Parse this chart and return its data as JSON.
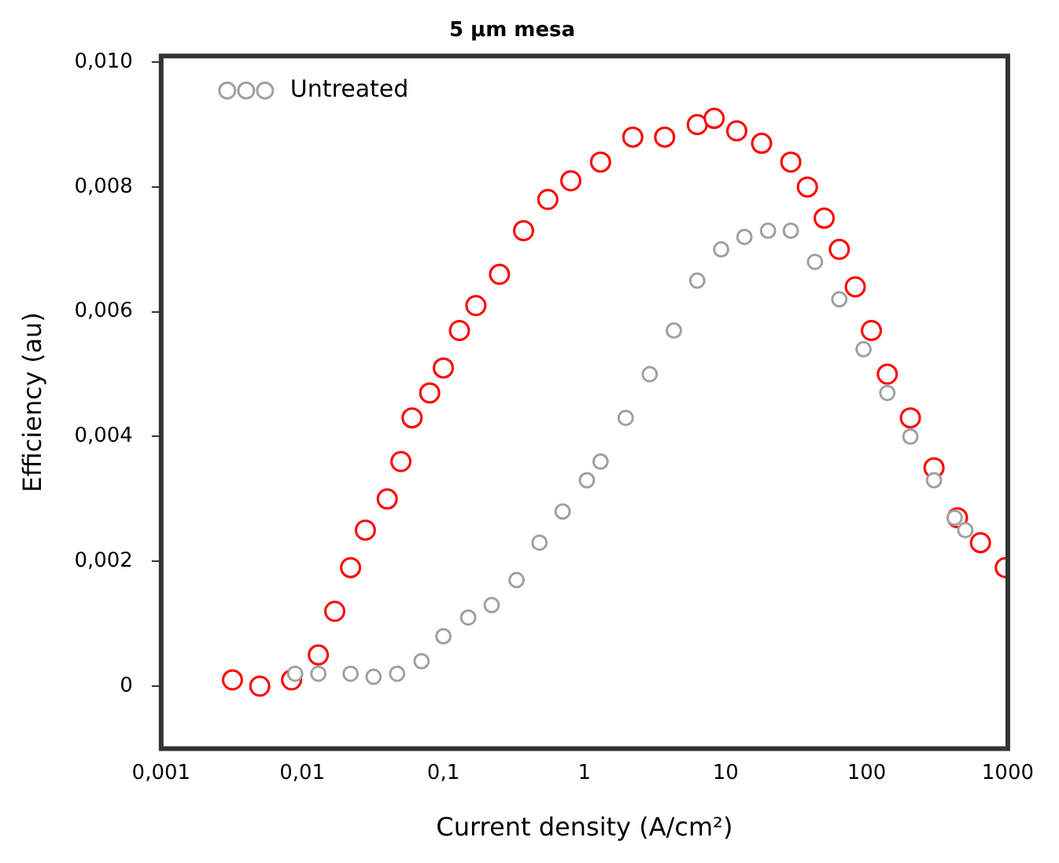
{
  "chart_data": {
    "type": "scatter",
    "title": "5 µm mesa",
    "xlabel": "Current density (A/cm²)",
    "ylabel": "Efficiency (au)",
    "log": "x",
    "xlim": [
      0.001,
      1000
    ],
    "xticks": [
      {
        "value": 0.001,
        "label": "0,001"
      },
      {
        "value": 0.01,
        "label": "0,01"
      },
      {
        "value": 0.1,
        "label": "0,1"
      },
      1,
      10,
      100,
      1000
    ],
    "ylim": [
      -0.001,
      0.0101
    ],
    "yticks": [
      0,
      {
        "value": 0.002,
        "label": "0,002"
      },
      {
        "value": 0.004,
        "label": "0,004"
      },
      {
        "value": 0.006,
        "label": "0,006"
      },
      {
        "value": 0.008,
        "label": "0,008"
      },
      {
        "value": 0.01,
        "label": "0,010"
      }
    ],
    "grid": false,
    "legend": "top left",
    "marker": "circle",
    "series": [
      {
        "name": "Untreated",
        "color": "#a0a0a0",
        "x": [
          0.0089,
          0.013,
          0.022,
          0.032,
          0.047,
          0.07,
          0.1,
          0.15,
          0.22,
          0.33,
          0.48,
          0.7,
          1.04,
          1.3,
          1.96,
          2.9,
          4.3,
          6.3,
          9.3,
          13.6,
          20,
          29,
          43,
          64,
          95,
          140,
          204,
          300,
          420,
          500
        ],
        "values": [
          0.0002,
          0.0002,
          0.0002,
          0.00015,
          0.0002,
          0.0004,
          0.0008,
          0.0011,
          0.0013,
          0.0017,
          0.0023,
          0.0028,
          0.0033,
          0.0036,
          0.0043,
          0.005,
          0.0057,
          0.0065,
          0.007,
          0.0072,
          0.0073,
          0.0073,
          0.0068,
          0.0062,
          0.0054,
          0.0047,
          0.004,
          0.0033,
          0.0027,
          0.0025
        ]
      },
      {
        "color": "#ff0000",
        "x": [
          0.0032,
          0.005,
          0.0084,
          0.013,
          0.017,
          0.022,
          0.028,
          0.04,
          0.05,
          0.06,
          0.08,
          0.1,
          0.13,
          0.17,
          0.25,
          0.37,
          0.55,
          0.8,
          1.3,
          2.2,
          3.7,
          6.3,
          8.3,
          12,
          18,
          29,
          38,
          50,
          64,
          83,
          108,
          140,
          204,
          300,
          440,
          640,
          960
        ],
        "values": [
          0.0001,
          0.0,
          0.0001,
          0.0005,
          0.0012,
          0.0019,
          0.0025,
          0.003,
          0.0036,
          0.0043,
          0.0047,
          0.0051,
          0.0057,
          0.0061,
          0.0066,
          0.0073,
          0.0078,
          0.0081,
          0.0084,
          0.0088,
          0.0088,
          0.009,
          0.0091,
          0.0089,
          0.0087,
          0.0084,
          0.008,
          0.0075,
          0.007,
          0.0064,
          0.0057,
          0.005,
          0.0043,
          0.0035,
          0.0027,
          0.0023,
          0.0019
        ]
      }
    ]
  }
}
